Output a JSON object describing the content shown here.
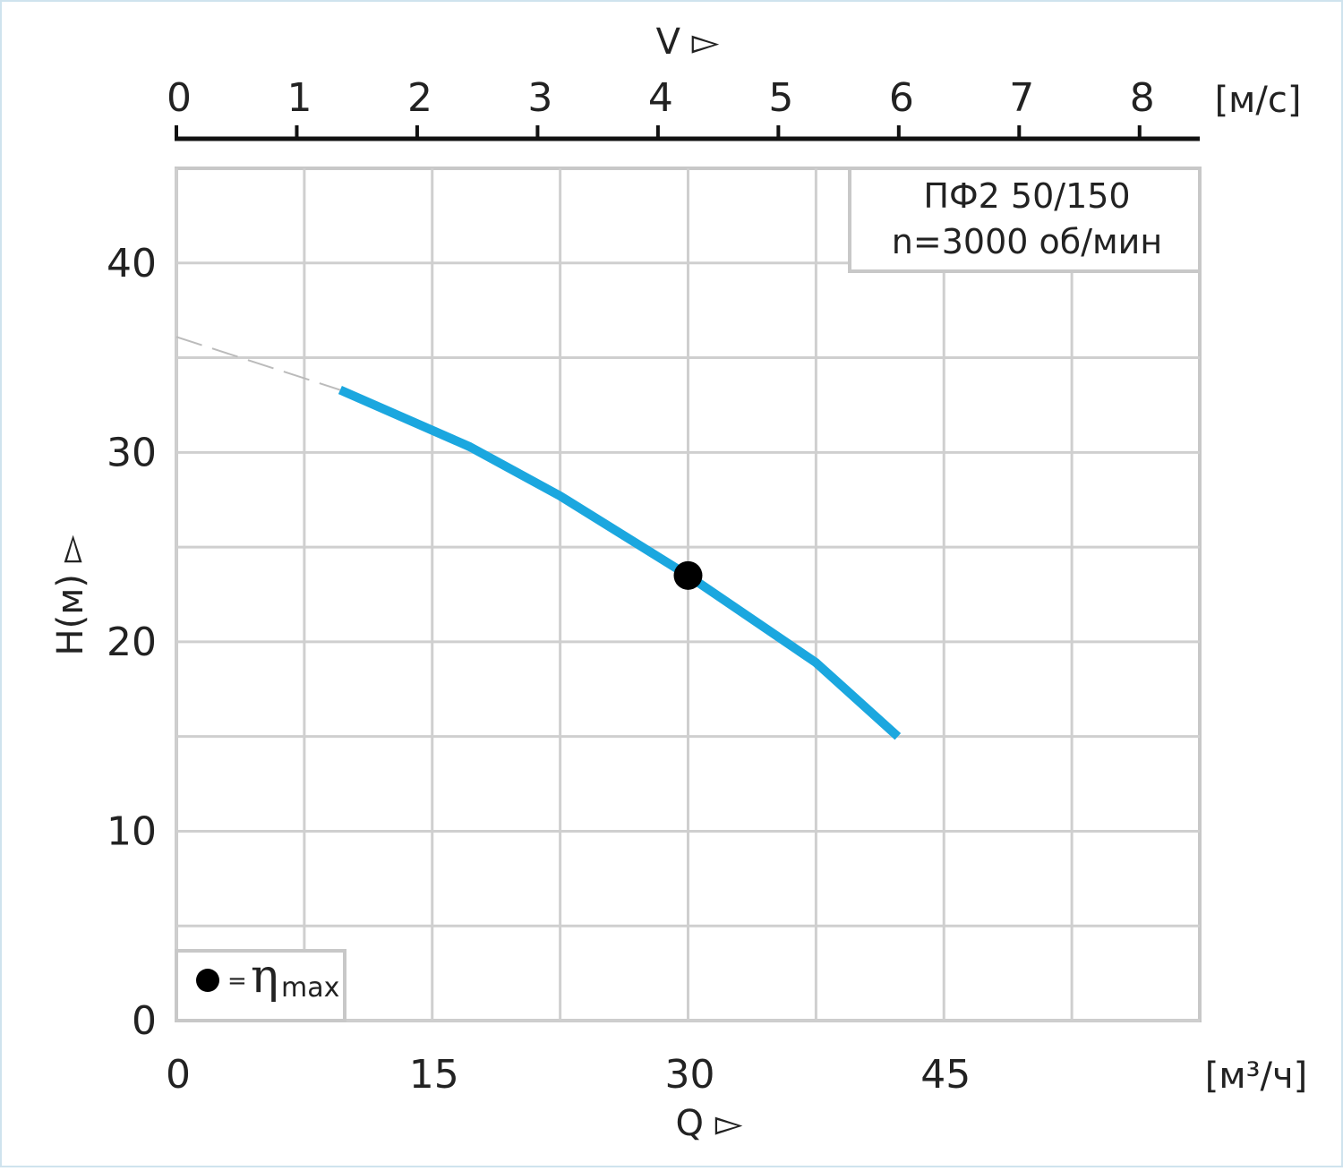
{
  "chart_data": {
    "type": "line",
    "title_lines": [
      "ПФ2 50/150",
      "n=3000 об/мин"
    ],
    "x_label": "Q ▻",
    "x_unit": "[м³/ч]",
    "y_label": "H(м) ▻",
    "x2_label": "V ▻",
    "x2_unit": "[м/с]",
    "xlim": [
      0,
      60
    ],
    "xticks": [
      0,
      15,
      30,
      45
    ],
    "minor_xticks": [
      7.5,
      22.5,
      37.5,
      52.5
    ],
    "ylim": [
      0,
      45
    ],
    "yticks": [
      0,
      10,
      20,
      30,
      40
    ],
    "minor_yticks": [
      5,
      15,
      25,
      35
    ],
    "x2lim": [
      0,
      8.5
    ],
    "x2ticks": [
      0,
      1,
      2,
      3,
      4,
      5,
      6,
      7,
      8
    ],
    "grid": true,
    "series": [
      {
        "color": "#1ba7df",
        "x": [
          9.6,
          17.2,
          22.5,
          30,
          37.5,
          42.3
        ],
        "values": [
          33.3,
          30.3,
          27.7,
          23.5,
          18.9,
          15.0
        ]
      },
      {
        "color": "#bbbbbb",
        "dashed": true,
        "x": [
          0,
          9.6
        ],
        "values": [
          36.1,
          33.3
        ]
      }
    ],
    "highlight": {
      "x": 30,
      "value": 23.5,
      "color": "#000000"
    },
    "legend": {
      "equals": "=",
      "symbol": "η",
      "subscript": "max"
    }
  }
}
